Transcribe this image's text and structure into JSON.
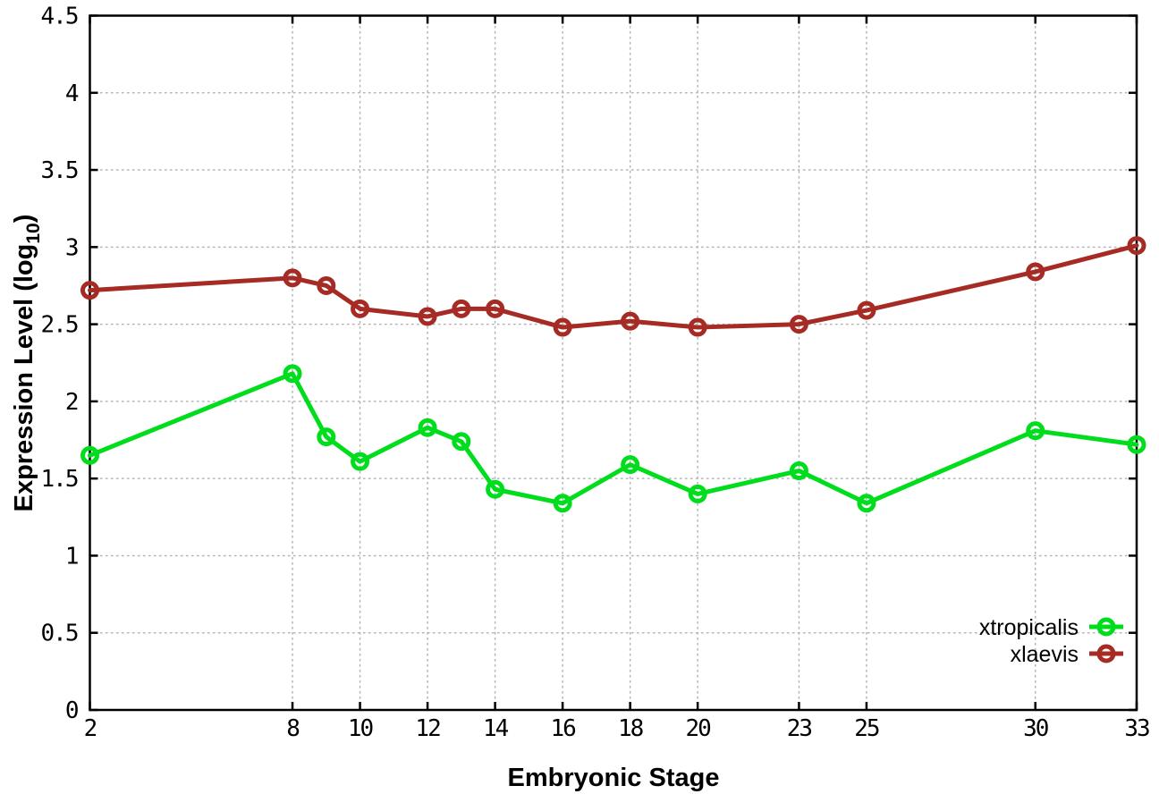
{
  "chart_data": {
    "type": "line",
    "xlabel": "Embryonic Stage",
    "ylabel": "Expression Level (log10)",
    "ylabel_parts": {
      "pre": "Expression Level (log",
      "sub": "10",
      "post": ")"
    },
    "x": [
      2,
      8,
      9,
      10,
      12,
      13,
      14,
      16,
      18,
      20,
      23,
      25,
      30,
      33
    ],
    "series": [
      {
        "name": "xtropicalis",
        "color": "#00dd1c",
        "values": [
          1.65,
          2.18,
          1.77,
          1.61,
          1.83,
          1.74,
          1.43,
          1.34,
          1.59,
          1.4,
          1.55,
          1.34,
          1.81,
          1.72
        ]
      },
      {
        "name": "xlaevis",
        "color": "#a62b24",
        "values": [
          2.72,
          2.8,
          2.75,
          2.6,
          2.55,
          2.6,
          2.6,
          2.48,
          2.52,
          2.48,
          2.5,
          2.59,
          2.84,
          3.01
        ]
      }
    ],
    "x_ticks": [
      2,
      8,
      10,
      12,
      14,
      16,
      18,
      20,
      23,
      25,
      30,
      33
    ],
    "y_ticks": [
      0,
      0.5,
      1,
      1.5,
      2,
      2.5,
      3,
      3.5,
      4,
      4.5
    ],
    "xlim": [
      2,
      33
    ],
    "ylim": [
      0,
      4.5
    ],
    "grid": true,
    "marker": "open-circle",
    "legend_position": "bottom-right",
    "legend": [
      "xtropicalis",
      "xlaevis"
    ]
  },
  "styles": {
    "background": "#ffffff",
    "border_color": "#000000",
    "grid_color": "#b4b4b4",
    "text_color": "#000000"
  }
}
